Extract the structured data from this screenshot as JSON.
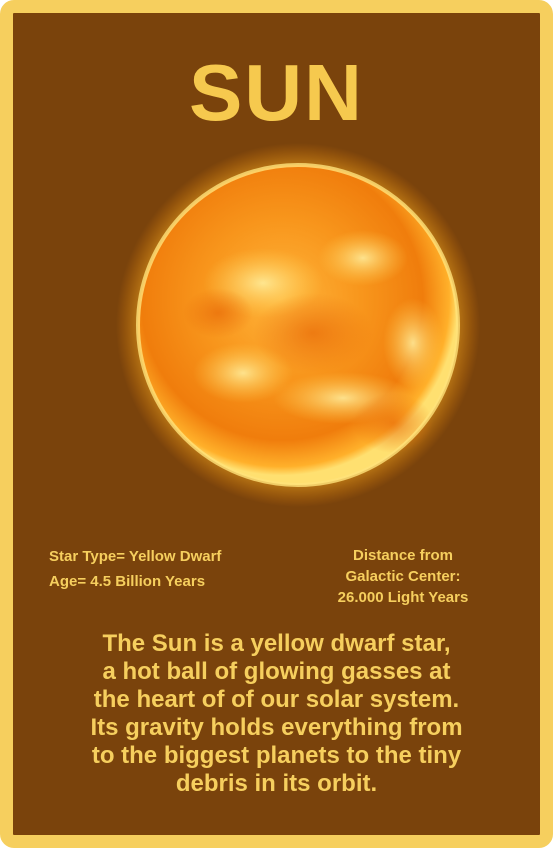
{
  "card": {
    "title": "SUN",
    "image": {
      "icon": "sun-image",
      "colors": {
        "core": "#ffd94a",
        "mid": "#ff9a1a",
        "edge": "#f07a0a",
        "glow": "#ffb830"
      }
    },
    "stats": {
      "star_type": "Star Type= Yellow Dwarf",
      "age": "Age= 4.5 Billion Years",
      "distance_lines": [
        "Distance from",
        "Galactic Center:",
        "26.000 Light Years"
      ]
    },
    "description_lines": [
      "The Sun is a yellow dwarf star,",
      "a hot ball of glowing gasses at",
      "the heart of of our solar system.",
      "Its gravity holds everything from",
      "to the biggest planets to the tiny",
      "debris in its orbit."
    ],
    "colors": {
      "background": "#7a430c",
      "border": "#f6cf5e",
      "text": "#f6cf5e",
      "title": "#f6c94e"
    }
  }
}
